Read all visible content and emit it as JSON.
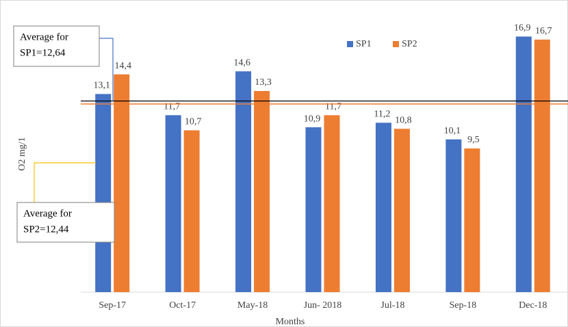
{
  "chart_data": {
    "type": "bar",
    "categories": [
      "Sep-17",
      "Oct-17",
      "May-18",
      "Jun- 2018",
      "Jul-18",
      "Sep-18",
      "Dec-18"
    ],
    "series": [
      {
        "name": "SP1",
        "color": "#4472c4",
        "values": [
          13.1,
          11.7,
          14.6,
          10.9,
          11.2,
          10.1,
          16.9
        ],
        "value_labels": [
          "13,1",
          "11,7",
          "14,6",
          "10,9",
          "11,2",
          "10,1",
          "16,9"
        ]
      },
      {
        "name": "SP2",
        "color": "#ed7d31",
        "values": [
          14.4,
          10.7,
          13.3,
          11.7,
          10.8,
          9.5,
          16.7
        ],
        "value_labels": [
          "14,4",
          "10,7",
          "13,3",
          "11,7",
          "10,8",
          "9,5",
          "16,7"
        ]
      }
    ],
    "ylim": [
      0,
      19
    ],
    "y_label": "O2 mg/1",
    "x_label": "Months",
    "legend": "top",
    "reference_lines": [
      {
        "label": [
          "Average for",
          "SP1=12,64"
        ],
        "value": 12.64,
        "color": "#000000",
        "leader_color": "#4472c4"
      },
      {
        "label": [
          "Average for",
          "SP2=12,44"
        ],
        "value": 12.44,
        "color": "#ed7d31",
        "leader_color": "#ffc000"
      }
    ]
  }
}
